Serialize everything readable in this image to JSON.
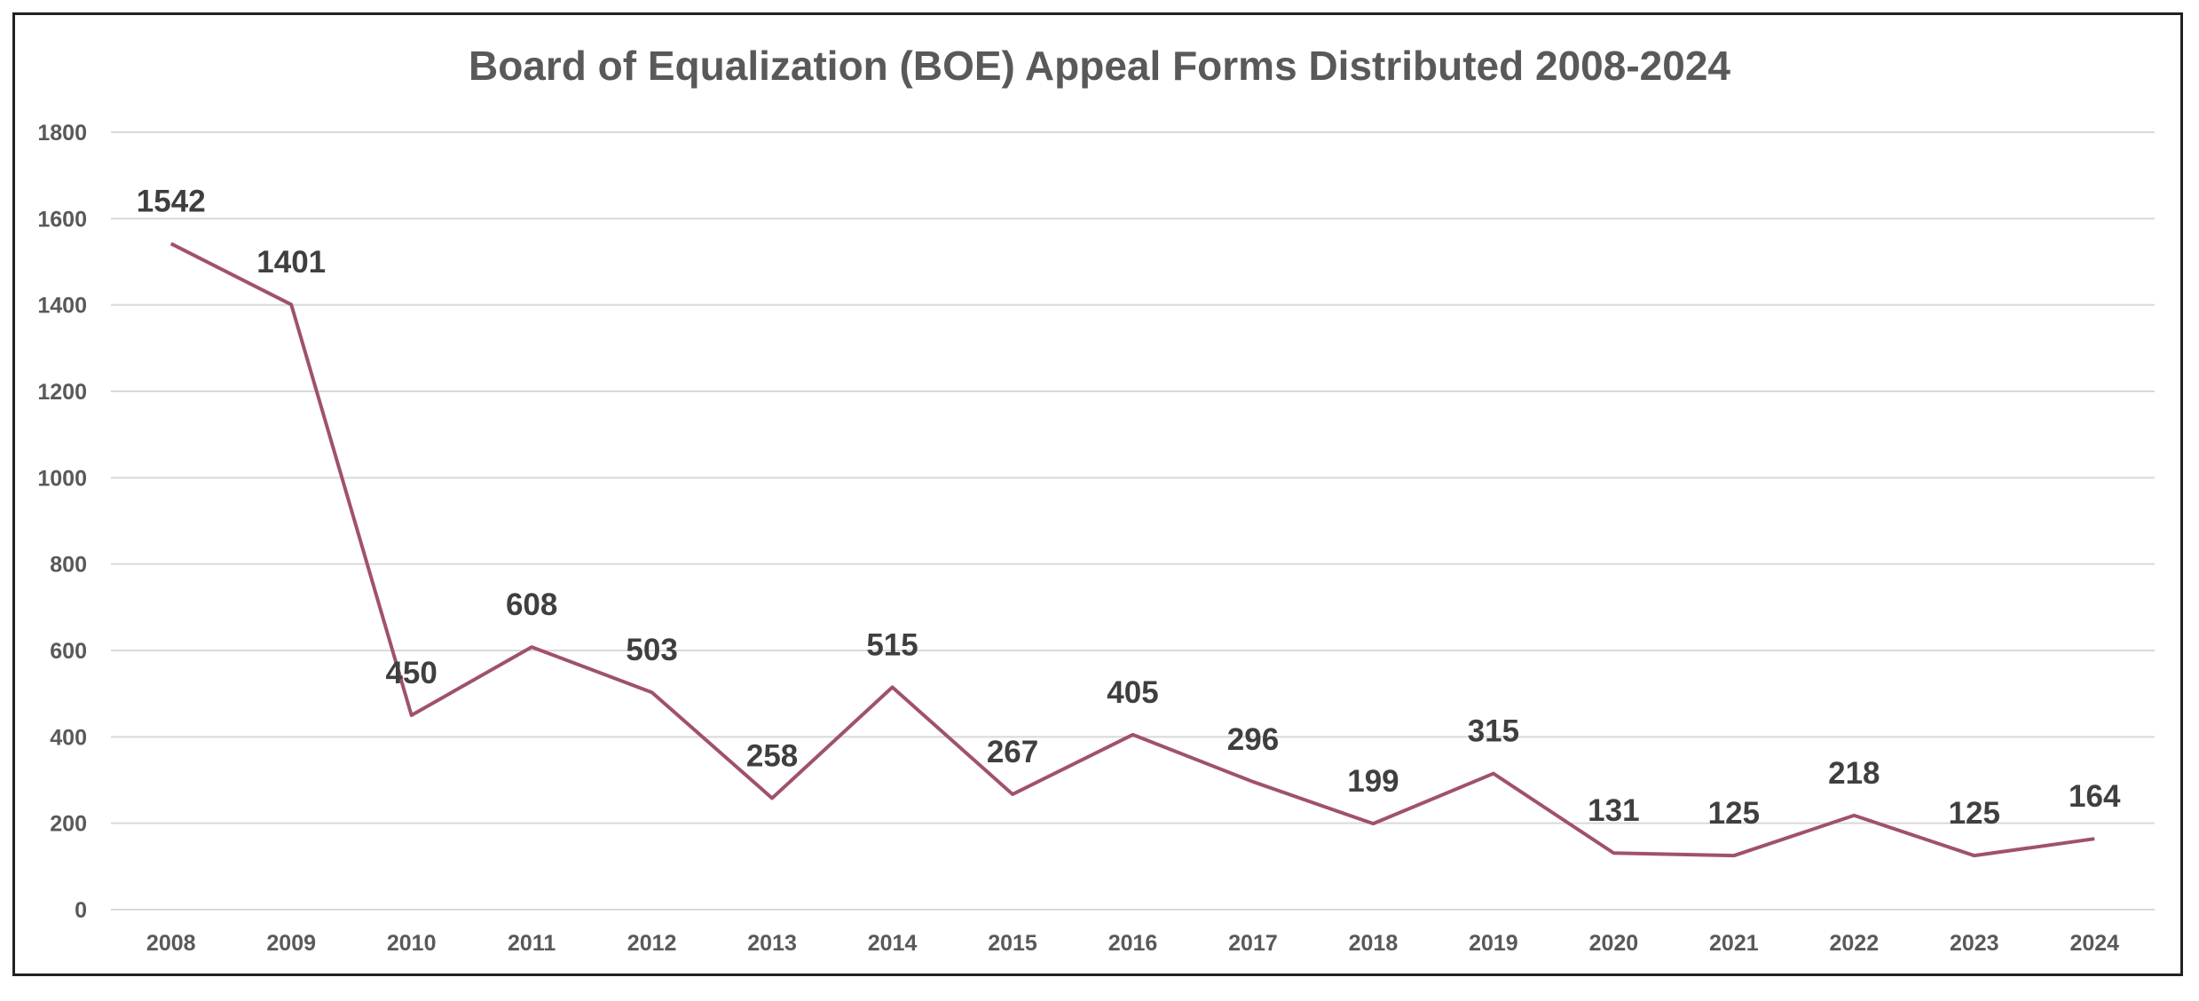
{
  "chart_data": {
    "type": "line",
    "title": "Board of Equalization (BOE) Appeal Forms Distributed 2008-2024",
    "xlabel": "",
    "ylabel": "",
    "categories": [
      "2008",
      "2009",
      "2010",
      "2011",
      "2012",
      "2013",
      "2014",
      "2015",
      "2016",
      "2017",
      "2018",
      "2019",
      "2020",
      "2021",
      "2022",
      "2023",
      "2024"
    ],
    "series": [
      {
        "values": [
          1542,
          1401,
          450,
          608,
          503,
          258,
          515,
          267,
          405,
          296,
          199,
          315,
          131,
          125,
          218,
          125,
          164
        ]
      }
    ],
    "ylim": [
      0,
      1800
    ],
    "yticks": [
      0,
      200,
      400,
      600,
      800,
      1000,
      1200,
      1400,
      1600,
      1800
    ],
    "grid": true,
    "legend": "none",
    "line_color": "#a0526a",
    "grid_color": "#d9d9d9",
    "text_color": "#595959"
  }
}
